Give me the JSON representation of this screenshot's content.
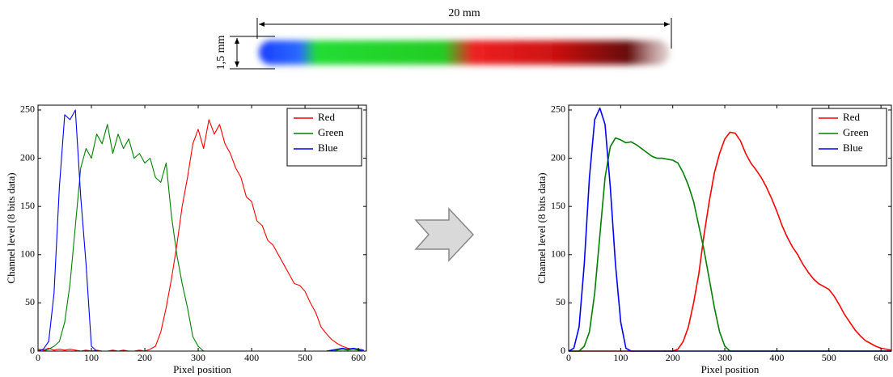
{
  "figure": {
    "length_label": "20 mm",
    "width_label": "1,5 mm"
  },
  "chart_data": [
    {
      "type": "line",
      "xlabel": "Pixel position",
      "ylabel": "Channel level (8 bits data)",
      "xlim": [
        0,
        615
      ],
      "ylim": [
        0,
        255
      ],
      "xticks": [
        0,
        100,
        200,
        300,
        400,
        500,
        600
      ],
      "yticks": [
        0,
        50,
        100,
        150,
        200,
        250
      ],
      "legend": "upper right",
      "x": [
        0,
        10,
        20,
        30,
        40,
        50,
        60,
        70,
        80,
        90,
        100,
        110,
        120,
        130,
        140,
        150,
        160,
        170,
        180,
        190,
        200,
        210,
        220,
        230,
        240,
        250,
        260,
        270,
        280,
        290,
        300,
        310,
        320,
        330,
        340,
        350,
        360,
        370,
        380,
        390,
        400,
        410,
        420,
        430,
        440,
        450,
        460,
        470,
        480,
        490,
        500,
        510,
        520,
        530,
        540,
        550,
        560,
        570,
        580,
        590,
        600,
        610
      ],
      "series": [
        {
          "name": "Red",
          "color": "#ff0000",
          "values": [
            2,
            1,
            3,
            1,
            2,
            1,
            2,
            1,
            0,
            1,
            0,
            1,
            0,
            0,
            1,
            0,
            1,
            0,
            0,
            1,
            0,
            2,
            5,
            20,
            45,
            75,
            110,
            150,
            180,
            215,
            230,
            210,
            240,
            225,
            235,
            215,
            205,
            190,
            180,
            160,
            155,
            135,
            130,
            115,
            110,
            100,
            90,
            80,
            70,
            68,
            62,
            50,
            40,
            25,
            18,
            12,
            8,
            5,
            3,
            2,
            2,
            1
          ]
        },
        {
          "name": "Green",
          "color": "#008000",
          "values": [
            0,
            0,
            2,
            5,
            10,
            30,
            70,
            130,
            190,
            210,
            200,
            225,
            215,
            235,
            205,
            225,
            210,
            220,
            200,
            205,
            195,
            200,
            180,
            175,
            195,
            140,
            100,
            70,
            45,
            15,
            5,
            0,
            0,
            0,
            0,
            0,
            0,
            0,
            0,
            0,
            0,
            0,
            0,
            0,
            0,
            0,
            0,
            0,
            0,
            0,
            0,
            0,
            0,
            0,
            0,
            1,
            1,
            2,
            1,
            2,
            1,
            0
          ]
        },
        {
          "name": "Blue",
          "color": "#0000ff",
          "values": [
            0,
            2,
            10,
            60,
            170,
            245,
            240,
            250,
            160,
            90,
            5,
            0,
            0,
            0,
            0,
            0,
            0,
            0,
            0,
            0,
            0,
            0,
            0,
            0,
            0,
            0,
            0,
            0,
            0,
            0,
            0,
            0,
            0,
            0,
            0,
            0,
            0,
            0,
            0,
            0,
            0,
            0,
            0,
            0,
            0,
            0,
            0,
            0,
            0,
            0,
            0,
            0,
            0,
            0,
            0,
            1,
            2,
            3,
            2,
            3,
            2,
            1
          ]
        }
      ]
    },
    {
      "type": "line",
      "xlabel": "Pixel position",
      "ylabel": "Channel level (8 bits data)",
      "xlim": [
        0,
        620
      ],
      "ylim": [
        0,
        255
      ],
      "xticks": [
        0,
        100,
        200,
        300,
        400,
        500,
        600
      ],
      "yticks": [
        0,
        50,
        100,
        150,
        200,
        250
      ],
      "legend": "upper right",
      "x": [
        0,
        10,
        20,
        30,
        40,
        50,
        60,
        70,
        80,
        90,
        100,
        110,
        120,
        130,
        140,
        150,
        160,
        170,
        180,
        190,
        200,
        210,
        220,
        230,
        240,
        250,
        260,
        270,
        280,
        290,
        300,
        310,
        320,
        330,
        340,
        350,
        360,
        370,
        380,
        390,
        400,
        410,
        420,
        430,
        440,
        450,
        460,
        470,
        480,
        490,
        500,
        510,
        520,
        530,
        540,
        550,
        560,
        570,
        580,
        590,
        600,
        610,
        620
      ],
      "series": [
        {
          "name": "Red",
          "color": "#ff0000",
          "values": [
            0,
            0,
            0,
            0,
            0,
            0,
            0,
            0,
            0,
            0,
            0,
            0,
            0,
            0,
            0,
            0,
            0,
            0,
            0,
            0,
            0,
            2,
            10,
            25,
            50,
            80,
            120,
            155,
            185,
            205,
            220,
            227,
            226,
            218,
            205,
            195,
            188,
            180,
            170,
            158,
            145,
            130,
            118,
            108,
            100,
            90,
            82,
            75,
            70,
            67,
            64,
            57,
            48,
            38,
            30,
            22,
            16,
            11,
            8,
            5,
            3,
            2,
            1
          ]
        },
        {
          "name": "Green",
          "color": "#008000",
          "values": [
            0,
            0,
            0,
            5,
            20,
            60,
            120,
            180,
            212,
            221,
            219,
            216,
            217,
            214,
            210,
            206,
            202,
            200,
            200,
            199,
            198,
            195,
            185,
            172,
            155,
            130,
            105,
            75,
            45,
            20,
            5,
            0,
            0,
            0,
            0,
            0,
            0,
            0,
            0,
            0,
            0,
            0,
            0,
            0,
            0,
            0,
            0,
            0,
            0,
            0,
            0,
            0,
            0,
            0,
            0,
            0,
            0,
            0,
            0,
            0,
            0,
            0,
            0
          ]
        },
        {
          "name": "Blue",
          "color": "#0000ff",
          "values": [
            0,
            3,
            25,
            90,
            180,
            240,
            252,
            235,
            170,
            90,
            30,
            3,
            0,
            0,
            0,
            0,
            0,
            0,
            0,
            0,
            0,
            0,
            0,
            0,
            0,
            0,
            0,
            0,
            0,
            0,
            0,
            0,
            0,
            0,
            0,
            0,
            0,
            0,
            0,
            0,
            0,
            0,
            0,
            0,
            0,
            0,
            0,
            0,
            0,
            0,
            0,
            0,
            0,
            0,
            0,
            0,
            0,
            0,
            0,
            0,
            0,
            0,
            0
          ]
        }
      ]
    }
  ]
}
